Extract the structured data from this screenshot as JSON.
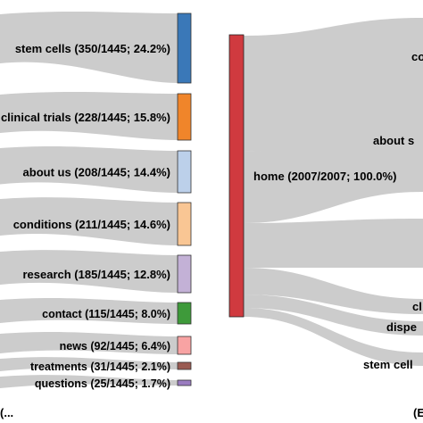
{
  "left_nodes": [
    {
      "label": "stem cells (350/1445; 24.2%)",
      "value": 350,
      "color": "#3a78b8"
    },
    {
      "label": "clinical trials (228/1445; 15.8%)",
      "value": 228,
      "color": "#f0852a"
    },
    {
      "label": "about us (208/1445; 14.4%)",
      "value": 208,
      "color": "#bcd0ea"
    },
    {
      "label": "conditions (211/1445; 14.6%)",
      "value": 211,
      "color": "#f9c694"
    },
    {
      "label": "research (185/1445; 12.8%)",
      "value": 185,
      "color": "#c3b1d6"
    },
    {
      "label": "contact (115/1445; 8.0%)",
      "value": 115,
      "color": "#3e9a3a"
    },
    {
      "label": "news (92/1445; 6.4%)",
      "value": 92,
      "color": "#f8a3a3"
    },
    {
      "label": "treatments (31/1445; 2.1%)",
      "value": 31,
      "color": "#9a5b52"
    },
    {
      "label": "questions (25/1445; 1.7%)",
      "value": 25,
      "color": "#9a7cc0"
    }
  ],
  "center_node": {
    "label": "home (2007/2007; 100.0%)",
    "value": 2007,
    "color": "#d03a3f"
  },
  "right_labels": [
    "co",
    "about s",
    "cl",
    "dispe",
    "stem cell"
  ],
  "footer_left": "(...",
  "footer_right": "(E",
  "link_color": "#cccccc"
}
